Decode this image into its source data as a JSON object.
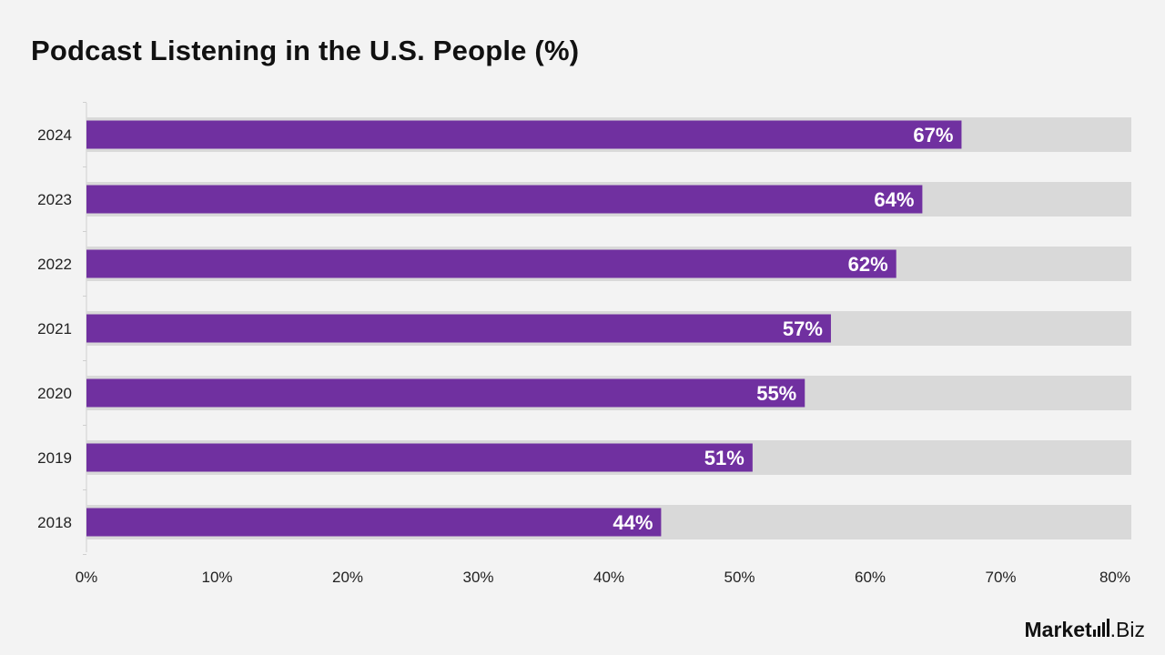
{
  "title": "Podcast Listening in the U.S. People (%)",
  "brand": {
    "main": "Market",
    "sub": ".Biz"
  },
  "colors": {
    "bar": "#7030a0",
    "track": "#d9d9d9",
    "background": "#f3f3f3",
    "text": "#222222",
    "label": "#ffffff"
  },
  "chart_data": {
    "type": "bar",
    "orientation": "horizontal",
    "categories": [
      "2024",
      "2023",
      "2022",
      "2021",
      "2020",
      "2019",
      "2018"
    ],
    "values": [
      67,
      64,
      62,
      57,
      55,
      51,
      44
    ],
    "data_labels": [
      "67%",
      "64%",
      "62%",
      "57%",
      "55%",
      "51%",
      "44%"
    ],
    "xlim": [
      0,
      80
    ],
    "x_ticks": [
      0,
      10,
      20,
      30,
      40,
      50,
      60,
      70,
      80
    ],
    "x_tick_labels": [
      "0%",
      "10%",
      "20%",
      "30%",
      "40%",
      "50%",
      "60%",
      "70%",
      "80%"
    ],
    "grid": false,
    "legend": "none"
  }
}
